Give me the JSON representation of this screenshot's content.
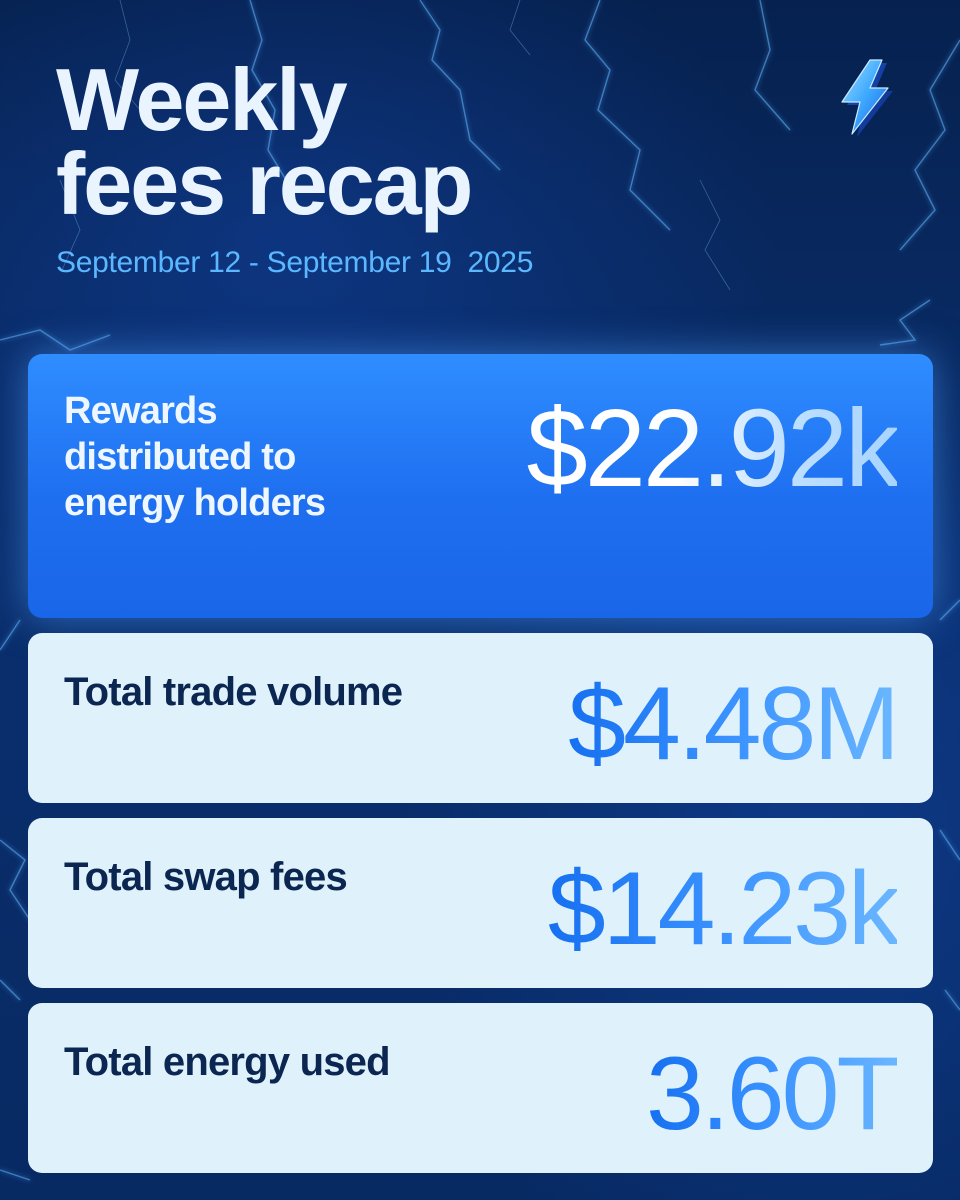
{
  "header": {
    "title_line1": "Weekly",
    "title_line2": "fees recap",
    "date_range": "September 12 - September 19  2025"
  },
  "logo": {
    "icon": "lightning-bolt-icon",
    "color": "#3da9ff"
  },
  "stats": {
    "rewards": {
      "label": "Rewards distributed to energy holders",
      "value": "$22.92k"
    },
    "trade_volume": {
      "label": "Total trade volume",
      "value": "$4.48M"
    },
    "swap_fees": {
      "label": "Total swap fees",
      "value": "$14.23k"
    },
    "energy_used": {
      "label": "Total energy used",
      "value": "3.60T"
    }
  },
  "colors": {
    "background": "#082a63",
    "hero_card": "#2a86ff",
    "light_card": "#dff2fc",
    "date_text": "#5bb8ff",
    "label_dark": "#0b2650"
  }
}
